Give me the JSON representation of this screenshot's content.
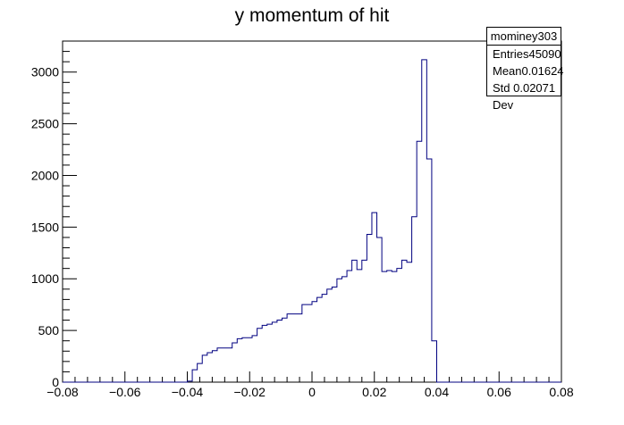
{
  "chart_data": {
    "type": "histogram",
    "title": "y momentum of hit",
    "xlabel": "",
    "ylabel": "",
    "xlim": [
      -0.08,
      0.08
    ],
    "ylim": [
      0,
      3300
    ],
    "xticks": [
      -0.08,
      -0.06,
      -0.04,
      -0.02,
      0,
      0.02,
      0.04,
      0.06,
      0.08
    ],
    "xtick_labels": [
      "−0.08",
      "−0.06",
      "−0.04",
      "−0.02",
      "0",
      "0.02",
      "0.04",
      "0.06",
      "0.08"
    ],
    "yticks": [
      0,
      500,
      1000,
      1500,
      2000,
      2500,
      3000
    ],
    "ytick_labels": [
      "0",
      "500",
      "1000",
      "1500",
      "2000",
      "2500",
      "3000"
    ],
    "bin_start": -0.04,
    "bin_width": 0.0016,
    "bin_values": [
      10,
      120,
      180,
      260,
      285,
      305,
      330,
      330,
      330,
      380,
      420,
      430,
      430,
      450,
      520,
      550,
      560,
      580,
      600,
      620,
      660,
      660,
      660,
      750,
      750,
      780,
      820,
      850,
      900,
      920,
      1000,
      1020,
      1080,
      1180,
      1090,
      1180,
      1430,
      1640,
      1400,
      1070,
      1080,
      1070,
      1100,
      1180,
      1160,
      1600,
      2330,
      3120,
      2160,
      400,
      0
    ],
    "line_color": "#000080",
    "grid": false,
    "legend": "none"
  },
  "stats": {
    "name": "mominey303",
    "rows": [
      {
        "label": "Entries",
        "value": "45090"
      },
      {
        "label": "Mean",
        "value": "0.01624"
      },
      {
        "label": "Std Dev",
        "value": "0.02071"
      }
    ]
  }
}
